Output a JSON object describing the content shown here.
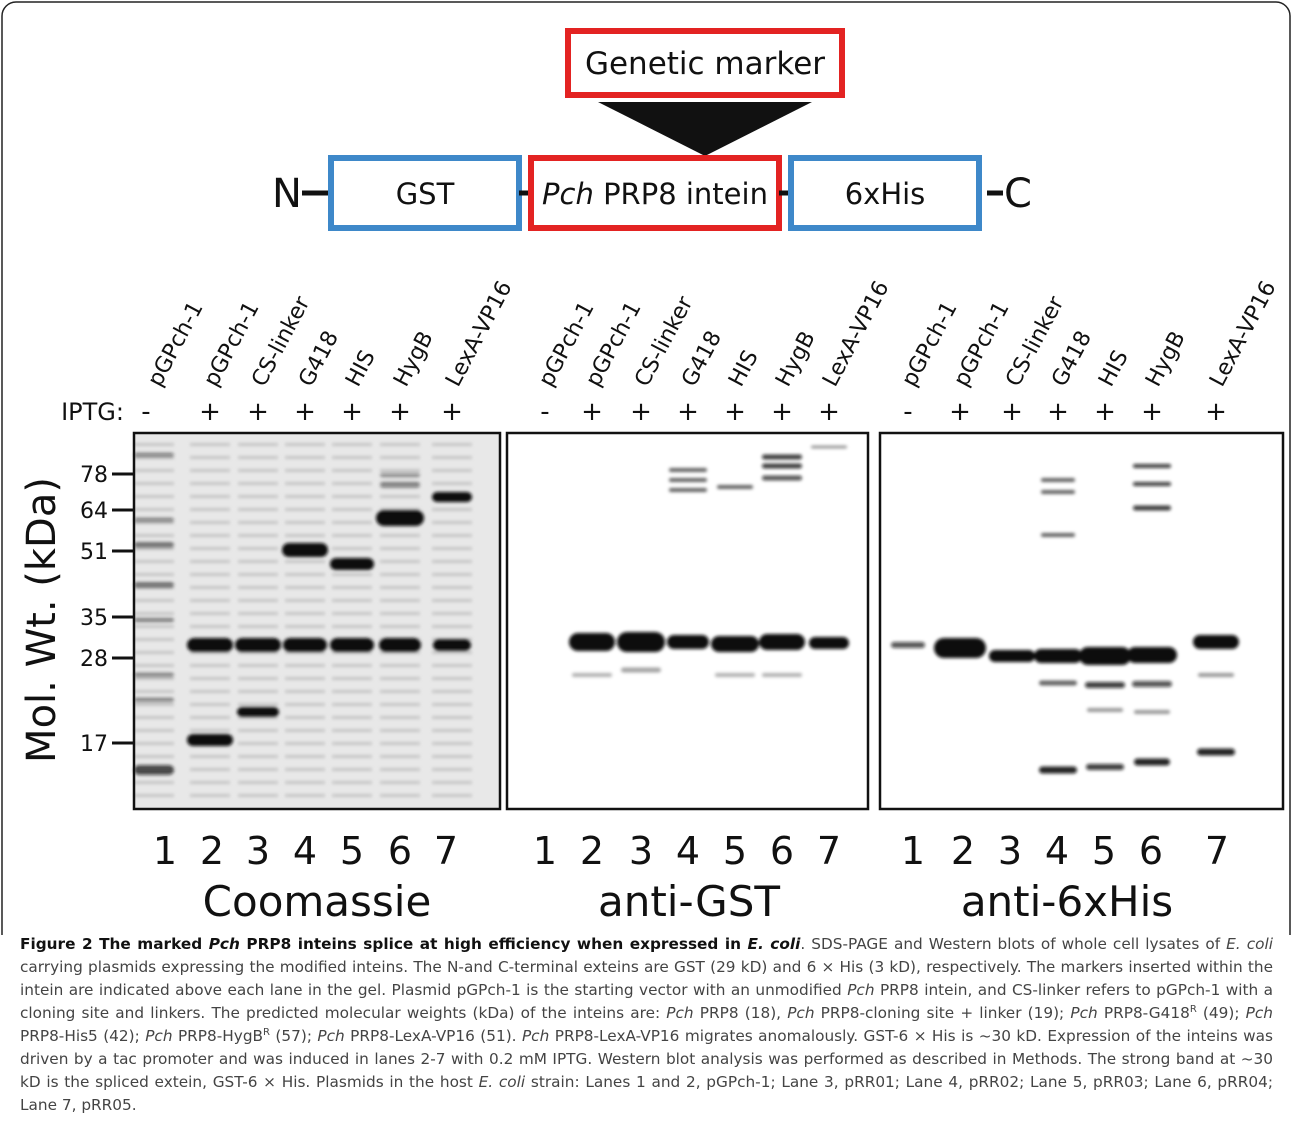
{
  "diagram": {
    "marker": "Genetic marker",
    "n_term": "N",
    "gst": "GST",
    "intein_italic": "Pch",
    "intein": "PRP8 intein",
    "his": "6xHis",
    "c_term": "C"
  },
  "iptg_label": "IPTG:",
  "mw": {
    "axis_label": "Mol. Wt. (kDa)",
    "ticks": [
      "78",
      "64",
      "51",
      "35",
      "28",
      "17"
    ]
  },
  "panels": [
    {
      "name": "Coomassie",
      "lane_labels": [
        "pGPch-1",
        "pGPch-1",
        "CS-linker",
        "G418",
        "HIS",
        "HygB",
        "LexA-VP16"
      ],
      "iptg": [
        "-",
        "+",
        "+",
        "+",
        "+",
        "+",
        "+"
      ],
      "lane_numbers": [
        "1",
        "2",
        "3",
        "4",
        "5",
        "6",
        "7"
      ]
    },
    {
      "name": "anti-GST",
      "lane_labels": [
        "pGPch-1",
        "pGPch-1",
        "CS-linker",
        "G418",
        "HIS",
        "HygB",
        "LexA-VP16"
      ],
      "iptg": [
        "-",
        "+",
        "+",
        "+",
        "+",
        "+",
        "+"
      ],
      "lane_numbers": [
        "1",
        "2",
        "3",
        "4",
        "5",
        "6",
        "7"
      ]
    },
    {
      "name": "anti-6xHis",
      "lane_labels": [
        "pGPch-1",
        "pGPch-1",
        "CS-linker",
        "G418",
        "HIS",
        "HygB",
        "LexA-VP16"
      ],
      "iptg": [
        "-",
        "+",
        "+",
        "+",
        "+",
        "+",
        "+"
      ],
      "lane_numbers": [
        "1",
        "2",
        "3",
        "4",
        "5",
        "6",
        "7"
      ]
    }
  ],
  "caption": [
    {
      "text": "Figure 2 The marked ",
      "style": "bold"
    },
    {
      "text": "Pch",
      "style": "bold-italic"
    },
    {
      "text": " PRP8 inteins splice at high efficiency when expressed in ",
      "style": "bold"
    },
    {
      "text": "E. coli",
      "style": "bold-italic"
    },
    {
      "text": ". SDS-PAGE and Western blots of whole cell lysates of ",
      "style": "normal"
    },
    {
      "text": "E. coli",
      "style": "italic"
    },
    {
      "text": " carrying plasmids expressing the modified inteins. The N-and C-terminal exteins are GST (29 kD) and 6 × His (3 kD), respectively. The markers inserted within the intein are indicated above each lane in the gel. Plasmid pGPch-1 is the starting vector with an unmodified ",
      "style": "normal"
    },
    {
      "text": "Pch",
      "style": "italic"
    },
    {
      "text": " PRP8 intein, and CS-linker refers to pGPch-1 with a cloning site and linkers. The predicted molecular weights (kDa) of the inteins are: ",
      "style": "normal"
    },
    {
      "text": "Pch",
      "style": "italic"
    },
    {
      "text": " PRP8 (18), ",
      "style": "normal"
    },
    {
      "text": "Pch",
      "style": "italic"
    },
    {
      "text": " PRP8-cloning site + linker (19); ",
      "style": "normal"
    },
    {
      "text": "Pch",
      "style": "italic"
    },
    {
      "text": " PRP8-G418",
      "style": "normal"
    },
    {
      "text": "R",
      "style": "sup"
    },
    {
      "text": " (49); ",
      "style": "normal"
    },
    {
      "text": "Pch",
      "style": "italic"
    },
    {
      "text": " PRP8-His5 (42); ",
      "style": "normal"
    },
    {
      "text": "Pch",
      "style": "italic"
    },
    {
      "text": " PRP8-HygB",
      "style": "normal"
    },
    {
      "text": "R",
      "style": "sup"
    },
    {
      "text": " (57); ",
      "style": "normal"
    },
    {
      "text": "Pch",
      "style": "italic"
    },
    {
      "text": " PRP8-LexA-VP16 (51). ",
      "style": "normal"
    },
    {
      "text": "Pch",
      "style": "italic"
    },
    {
      "text": " PRP8-LexA-VP16 migrates anomalously. GST-6 × His is ~30 kD. Expression of the inteins was driven by a tac promoter and was induced in lanes 2-7 with 0.2 mM IPTG. Western blot analysis was performed as described in Methods. The strong band at ~30 kD is the spliced extein, GST-6 × His. Plasmids in the host ",
      "style": "normal"
    },
    {
      "text": "E. coli",
      "style": "italic"
    },
    {
      "text": " strain: Lanes 1 and 2, pGPch-1; Lane 3, pRR01; Lane 4, pRR02; Lane 5, pRR03; Lane 6, pRR04; Lane 7, pRR05.",
      "style": "normal"
    }
  ]
}
